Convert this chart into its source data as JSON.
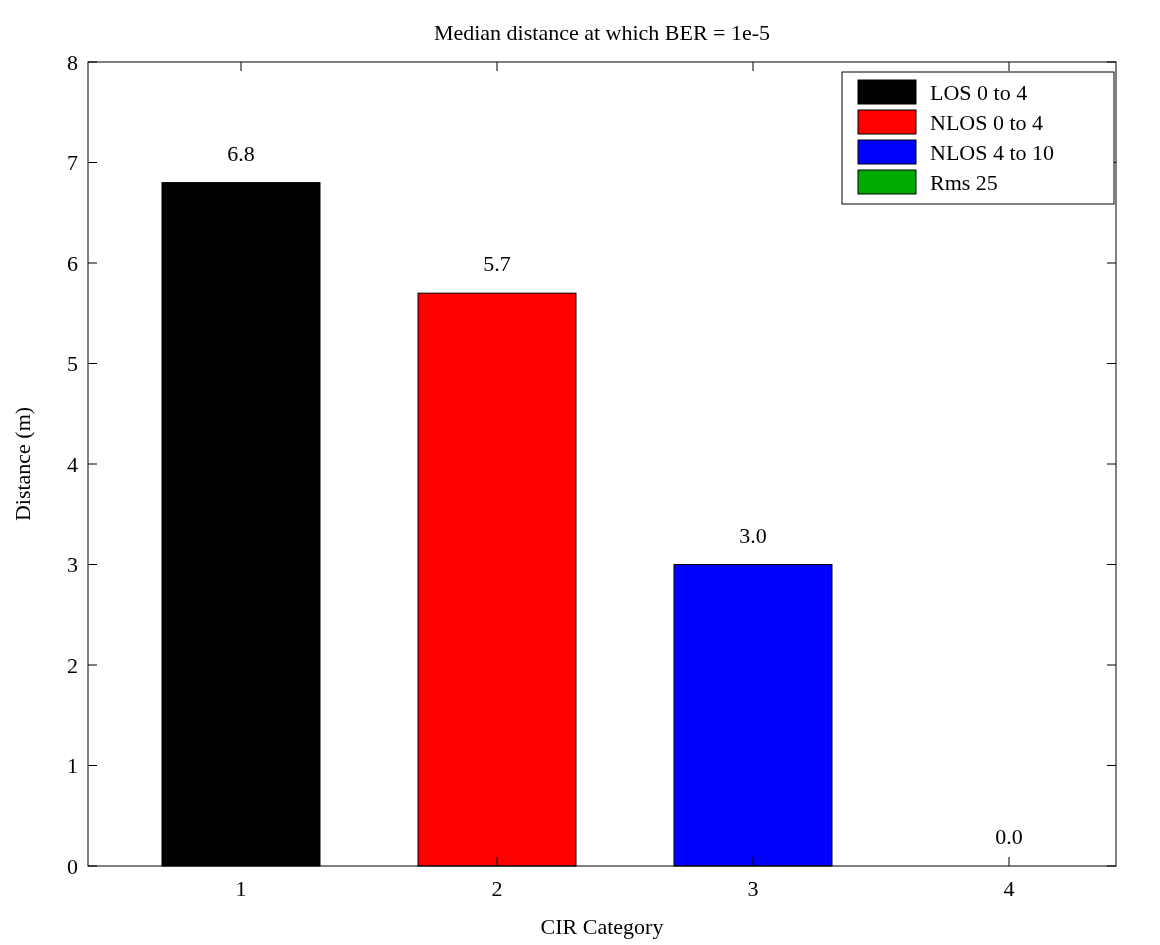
{
  "chart_data": {
    "type": "bar",
    "title": "Median distance at which BER = 1e-5",
    "xlabel": "CIR Category",
    "ylabel": "Distance (m)",
    "categories": [
      "1",
      "2",
      "3",
      "4"
    ],
    "series": [
      {
        "name": "LOS 0 to 4",
        "color": "#000000",
        "values": [
          6.8,
          null,
          null,
          null
        ],
        "value_labels": [
          "6.8",
          null,
          null,
          null
        ]
      },
      {
        "name": "NLOS 0 to 4",
        "color": "#ff0000",
        "values": [
          null,
          5.7,
          null,
          null
        ],
        "value_labels": [
          null,
          "5.7",
          null,
          null
        ]
      },
      {
        "name": "NLOS 4 to 10",
        "color": "#0000ff",
        "values": [
          null,
          null,
          3.0,
          null
        ],
        "value_labels": [
          null,
          null,
          "3.0",
          null
        ]
      },
      {
        "name": "Rms 25",
        "color": "#00aa00",
        "values": [
          null,
          null,
          null,
          0.0
        ],
        "value_labels": [
          null,
          null,
          null,
          "0.0"
        ]
      }
    ],
    "ylim": [
      0,
      8
    ],
    "yticks": [
      0,
      1,
      2,
      3,
      4,
      5,
      6,
      7,
      8
    ],
    "grid": false,
    "legend": "top right"
  }
}
